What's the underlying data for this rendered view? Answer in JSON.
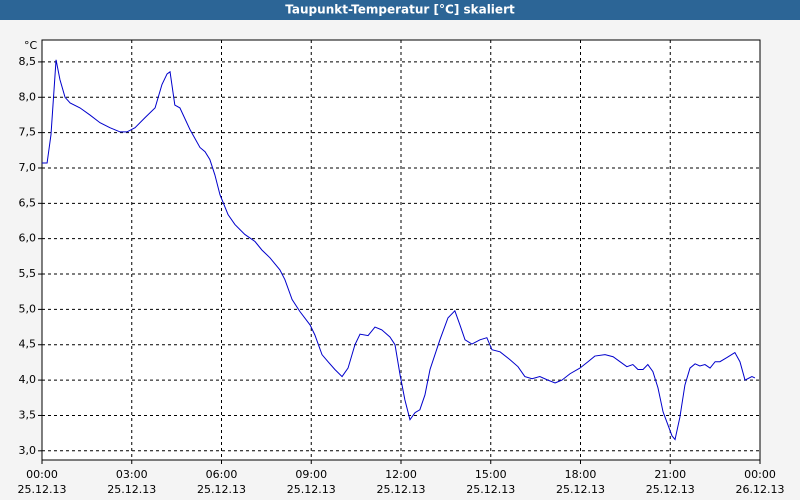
{
  "chart_data": {
    "type": "line",
    "title": "Taupunkt-Temperatur [°C] skaliert",
    "y_label": "°C",
    "color": "#0000cc",
    "grid": true,
    "xlim": [
      0,
      24
    ],
    "ylim": [
      2.87,
      8.81
    ],
    "xticks": [
      {
        "value": 0,
        "label": "00:00"
      },
      {
        "value": 3,
        "label": "03:00"
      },
      {
        "value": 6,
        "label": "06:00"
      },
      {
        "value": 9,
        "label": "09:00"
      },
      {
        "value": 12,
        "label": "12:00"
      },
      {
        "value": 15,
        "label": "15:00"
      },
      {
        "value": 18,
        "label": "18:00"
      },
      {
        "value": 21,
        "label": "21:00"
      },
      {
        "value": 24,
        "label": "00:00"
      }
    ],
    "xtick_dates": [
      "25.12.13",
      "25.12.13",
      "25.12.13",
      "25.12.13",
      "25.12.13",
      "25.12.13",
      "25.12.13",
      "25.12.13",
      "26.12.13"
    ],
    "yticks": [
      {
        "value": 3,
        "label": "3,0"
      },
      {
        "value": 3.5,
        "label": "3,5"
      },
      {
        "value": 4,
        "label": "4,0"
      },
      {
        "value": 4.5,
        "label": "4,5"
      },
      {
        "value": 5,
        "label": "5,0"
      },
      {
        "value": 5.5,
        "label": "5,5"
      },
      {
        "value": 6,
        "label": "6,0"
      },
      {
        "value": 6.5,
        "label": "6,5"
      },
      {
        "value": 7,
        "label": "7,0"
      },
      {
        "value": 7.5,
        "label": "7,5"
      },
      {
        "value": 8,
        "label": "8,0"
      },
      {
        "value": 8.5,
        "label": "8,5"
      }
    ],
    "x": [
      0,
      0.17,
      0.3,
      0.47,
      0.6,
      0.77,
      0.94,
      1.27,
      1.6,
      1.94,
      2.27,
      2.61,
      2.84,
      3.11,
      3.44,
      3.78,
      4.01,
      4.18,
      4.28,
      4.44,
      4.61,
      4.95,
      5.28,
      5.45,
      5.61,
      5.78,
      5.95,
      6.22,
      6.45,
      6.78,
      7.12,
      7.35,
      7.62,
      7.95,
      8.12,
      8.36,
      8.62,
      8.96,
      9.12,
      9.36,
      9.56,
      9.79,
      10.03,
      10.23,
      10.46,
      10.63,
      10.9,
      11.13,
      11.36,
      11.63,
      11.8,
      11.97,
      12.13,
      12.3,
      12.47,
      12.63,
      12.8,
      12.97,
      13.3,
      13.57,
      13.8,
      13.97,
      14.14,
      14.37,
      14.64,
      14.87,
      15.04,
      15.31,
      15.64,
      15.91,
      16.14,
      16.38,
      16.64,
      16.91,
      17.15,
      17.38,
      17.65,
      17.98,
      18.25,
      18.48,
      18.82,
      19.09,
      19.32,
      19.55,
      19.75,
      19.92,
      20.09,
      20.25,
      20.42,
      20.59,
      20.76,
      20.92,
      21.06,
      21.16,
      21.32,
      21.49,
      21.66,
      21.83,
      21.99,
      22.16,
      22.33,
      22.5,
      22.66,
      22.9,
      23.16,
      23.33,
      23.5,
      23.73,
      23.83
    ],
    "values": [
      7.07,
      7.07,
      7.47,
      8.53,
      8.25,
      8.0,
      7.92,
      7.85,
      7.75,
      7.64,
      7.57,
      7.51,
      7.51,
      7.57,
      7.71,
      7.85,
      8.18,
      8.33,
      8.36,
      7.89,
      7.85,
      7.54,
      7.29,
      7.23,
      7.12,
      6.9,
      6.62,
      6.34,
      6.2,
      6.06,
      5.96,
      5.84,
      5.73,
      5.56,
      5.42,
      5.14,
      4.97,
      4.78,
      4.64,
      4.36,
      4.26,
      4.15,
      4.05,
      4.17,
      4.5,
      4.65,
      4.63,
      4.75,
      4.71,
      4.61,
      4.5,
      4.07,
      3.72,
      3.44,
      3.54,
      3.58,
      3.79,
      4.15,
      4.57,
      4.88,
      4.98,
      4.78,
      4.57,
      4.51,
      4.57,
      4.6,
      4.43,
      4.4,
      4.29,
      4.19,
      4.05,
      4.02,
      4.05,
      4.0,
      3.96,
      4.0,
      4.09,
      4.17,
      4.26,
      4.34,
      4.36,
      4.33,
      4.26,
      4.19,
      4.22,
      4.15,
      4.15,
      4.22,
      4.12,
      3.89,
      3.55,
      3.37,
      3.21,
      3.16,
      3.47,
      3.93,
      4.17,
      4.23,
      4.2,
      4.22,
      4.17,
      4.26,
      4.26,
      4.32,
      4.39,
      4.26,
      4.0,
      4.05,
      4.03
    ]
  }
}
